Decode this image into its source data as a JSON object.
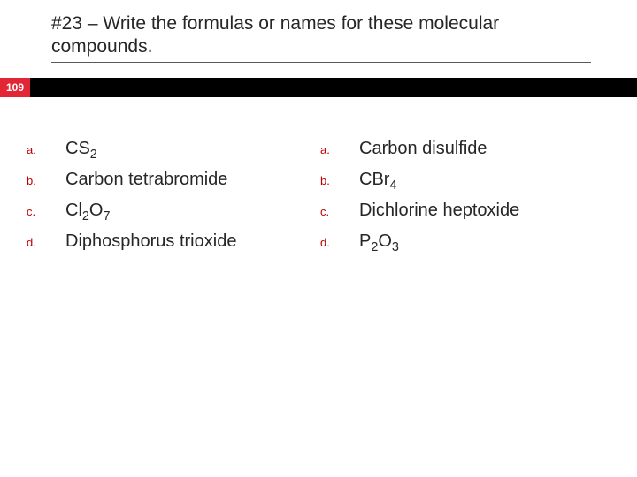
{
  "title": "#23 – Write the formulas or names for these molecular compounds.",
  "slide_number": "109",
  "colors": {
    "badge_bg": "#e32636",
    "badge_text": "#ffffff",
    "bar_bg": "#000000",
    "title_color": "#262626",
    "letter_color": "#c00000",
    "answer_color": "#262626",
    "underline_color": "#595959",
    "background": "#ffffff"
  },
  "typography": {
    "title_fontsize": 21,
    "answer_fontsize": 20,
    "letter_fontsize": 13,
    "badge_fontsize": 12
  },
  "left_column": [
    {
      "letter": "a.",
      "text_html": "CS<sub>2</sub>"
    },
    {
      "letter": "b.",
      "text_html": "Carbon tetrabromide"
    },
    {
      "letter": "c.",
      "text_html": "Cl<sub>2</sub>O<sub>7</sub>"
    },
    {
      "letter": "d.",
      "text_html": "Diphosphorus trioxide"
    }
  ],
  "right_column": [
    {
      "letter": "a.",
      "text_html": "Carbon disulfide"
    },
    {
      "letter": "b.",
      "text_html": "CBr<sub>4</sub>"
    },
    {
      "letter": "c.",
      "text_html": "Dichlorine heptoxide"
    },
    {
      "letter": "d.",
      "text_html": "P<sub>2</sub>O<sub>3</sub>"
    }
  ]
}
